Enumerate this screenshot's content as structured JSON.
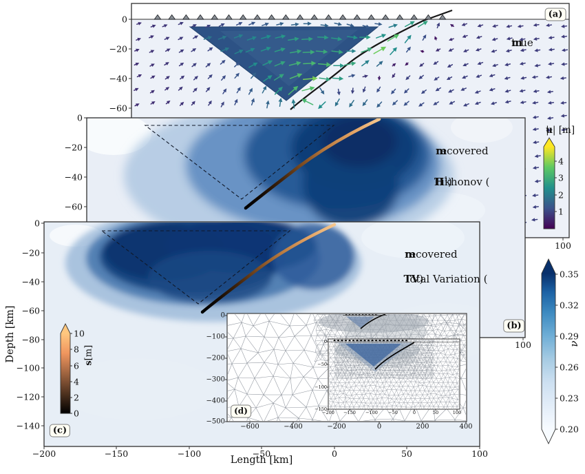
{
  "colors": {
    "viridis": [
      "#440154",
      "#3b528b",
      "#21918c",
      "#5ec962",
      "#fde725"
    ],
    "blues_dark": "#08306b",
    "blues_light": "#f7fbff",
    "copper_dark": "#000000",
    "copper_light": "#ffc77f",
    "wedge_fill": "#2d5285",
    "panel_bg": "#edf1f8"
  },
  "panels": {
    "a": {
      "tag": "(a)",
      "annotation": {
        "prefix": "true ",
        "bold": "m"
      },
      "yticks": [
        "0",
        "−20",
        "−40",
        "−60"
      ],
      "xtick_right": "100",
      "colorbar": {
        "p1": "|",
        "bold": "u",
        "p2": "| [m]",
        "ticks": [
          "1",
          "2",
          "3",
          "4"
        ]
      }
    },
    "b": {
      "tag": "(b)",
      "line1": {
        "prefix": "recovered ",
        "bold": "m"
      },
      "method": {
        "pre": "Tikhonov (",
        "bold": "H",
        "sup": "1",
        "post": ")"
      },
      "yticks": [
        "0",
        "−20",
        "−40",
        "−60"
      ],
      "xtick_right": "100"
    },
    "c": {
      "tag": "(c)",
      "line1": {
        "prefix": "recovered ",
        "bold": "m"
      },
      "method": {
        "pre": "Total Variation (",
        "bold": "TV",
        "post": ")",
        "sup": ""
      },
      "xlabel": "Length [km]",
      "ylabel": "Depth [km]",
      "yticks": [
        "0",
        "−20",
        "−40",
        "−60",
        "−80",
        "−100",
        "−120",
        "−140"
      ],
      "xticks": [
        "−200",
        "−150",
        "−100",
        "−50",
        "0",
        "50",
        "100"
      ],
      "colorbar": {
        "bold": "s",
        "rest": " [m]",
        "ticks": [
          "0",
          "2",
          "4",
          "6",
          "8",
          "10"
        ]
      }
    },
    "d": {
      "tag": "(d)",
      "xticks": [
        "−600",
        "−400",
        "−200",
        "0",
        "200",
        "400"
      ],
      "yticks": [
        "0",
        "−100",
        "−200",
        "−300",
        "−400",
        "−500"
      ],
      "inner": {
        "xticks": [
          "−200",
          "−150",
          "−100",
          "−50",
          "0",
          "50",
          "100"
        ],
        "yticks": [
          "0",
          "−50",
          "−100",
          "−150"
        ]
      }
    }
  },
  "colorbar_nu": {
    "label": "ν",
    "ticks": [
      "0.20",
      "0.23",
      "0.26",
      "0.29",
      "0.32",
      "0.35"
    ]
  },
  "chart_data": [
    {
      "panel": "a",
      "type": "quiver",
      "title": "true m",
      "x_range_km": [
        -200,
        100
      ],
      "visible_depth_ticks_km": [
        0,
        -20,
        -40,
        -60
      ],
      "visible_xtick_km": 100,
      "field": "displacement vectors u; magnitude peaks about 4.5 m in yellow arrows along the shallow fault, far field about 0.5-1 m",
      "colorbar": {
        "label": "|u| [m]",
        "cmap": "viridis",
        "ticks": [
          1,
          2,
          3,
          4
        ],
        "extend": "max"
      },
      "stations": {
        "marker": "triangle",
        "count": 21,
        "at_depth_km": 0,
        "from_km": -182,
        "to_km": 13
      },
      "true_body_triangle_km": [
        [
          -160,
          -5
        ],
        [
          -31,
          -5
        ],
        [
          -94,
          -55
        ]
      ],
      "fault": "curved interface from surface near x = 0 km dipping down-left to about (-91, -61) km"
    },
    {
      "panel": "b",
      "type": "filled_contour",
      "title": "recovered m - Tikhonov (H1)",
      "x_range_km": [
        -200,
        100
      ],
      "visible_depth_ticks_km": [
        0,
        -20,
        -40,
        -60
      ],
      "visible_xtick_km": 100,
      "value": "Poisson ratio nu, smooth recovery spanning colorbar range 0.20-0.35, dark core right of triangle center",
      "overlays": [
        "dashed true-body triangle (-160,-5),(-31,-5),(-94,-55) km",
        "fault curve colored by slip s (copper), black at depth"
      ]
    },
    {
      "panel": "c",
      "type": "filled_contour",
      "title": "recovered m - Total Variation (TV)",
      "x_range_km": [
        -200,
        100
      ],
      "depth_range_km": [
        -155,
        0
      ],
      "xticks_km": [
        -200,
        -150,
        -100,
        -50,
        0,
        50,
        100
      ],
      "yticks_km": [
        0,
        -20,
        -40,
        -60,
        -80,
        -100,
        -120,
        -140
      ],
      "xlabel": "Length [km]",
      "ylabel": "Depth [km]",
      "value": "Poisson ratio nu, blocky TV recovery with dark core inside dashed triangle",
      "colorbar_s": {
        "label": "s [m]",
        "cmap": "copper",
        "ticks": [
          0,
          2,
          4,
          6,
          8,
          10
        ],
        "extend": "max"
      }
    },
    {
      "panel": "d",
      "type": "mesh",
      "title": "triangular finite-element mesh, refined near body and fault",
      "xticks_km": [
        -600,
        -400,
        -200,
        0,
        200,
        400
      ],
      "yticks_km": [
        0,
        -100,
        -200,
        -300,
        -400,
        -500
      ],
      "inner_inset": {
        "xticks_km": [
          -200,
          -150,
          -100,
          -50,
          0,
          50,
          100
        ],
        "yticks_km": [
          0,
          -50,
          -100,
          -150
        ]
      }
    },
    {
      "colorbar": "nu",
      "label": "ν",
      "cmap": "Blues",
      "ticks": [
        0.2,
        0.23,
        0.26,
        0.29,
        0.32,
        0.35
      ],
      "extend": "both"
    }
  ]
}
